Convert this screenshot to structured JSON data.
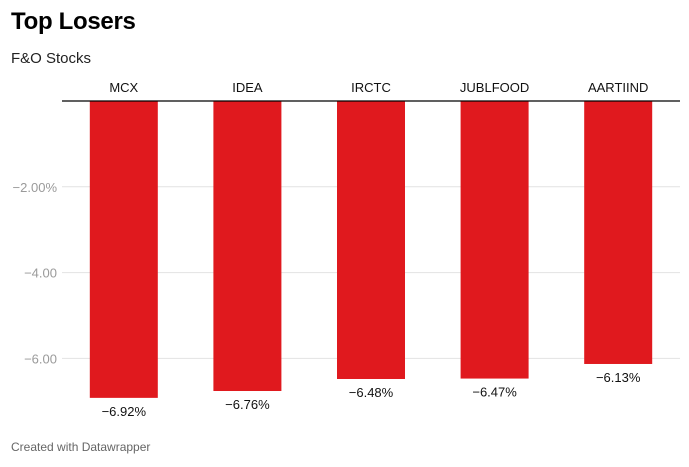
{
  "header": {
    "title": "Top Losers",
    "subtitle": "F&O Stocks"
  },
  "footer": {
    "credit": "Created with Datawrapper"
  },
  "colors": {
    "bar": "#e0191e",
    "grid": "#e2e2e2",
    "baseline": "#000000"
  },
  "chart_data": {
    "type": "bar",
    "title": "Top Losers",
    "subtitle": "F&O Stocks",
    "categories": [
      "MCX",
      "IDEA",
      "IRCTC",
      "JUBLFOOD",
      "AARTIIND"
    ],
    "values": [
      -6.92,
      -6.76,
      -6.48,
      -6.47,
      -6.13
    ],
    "value_labels": [
      "−6.92%",
      "−6.76%",
      "−6.48%",
      "−6.47%",
      "−6.13%"
    ],
    "ylim": [
      -7.2,
      0
    ],
    "yticks": [
      -2,
      -4,
      -6
    ],
    "ytick_labels": [
      "−2.00%",
      "−4.00",
      "−6.00"
    ],
    "grid": true,
    "category_labels_position": "top",
    "legend": "none"
  }
}
